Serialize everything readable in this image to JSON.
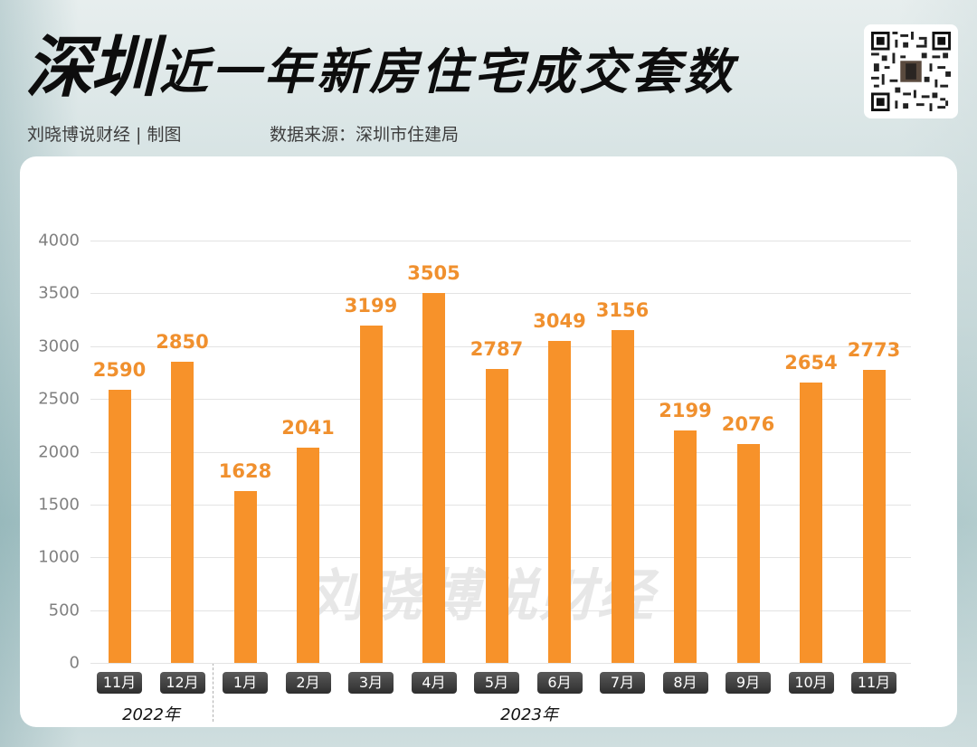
{
  "header": {
    "title_big": "深圳",
    "title_rest": "近一年新房住宅成交套数",
    "author": "刘晓博说财经 | 制图",
    "source": "数据来源：深圳市住建局",
    "qr_label": "qr-code"
  },
  "watermark": "刘晓博说财经",
  "colors": {
    "bar": "#f7922a",
    "value_label": "#f0902e",
    "month_badge": "#3a3a3a"
  },
  "chart_data": {
    "type": "bar",
    "title": "深圳近一年新房住宅成交套数",
    "xlabel": "",
    "ylabel": "",
    "ylim": [
      0,
      4000
    ],
    "yticks": [
      0,
      500,
      1000,
      1500,
      2000,
      2500,
      3000,
      3500,
      4000
    ],
    "grid": true,
    "legend": null,
    "categories": [
      "11月",
      "12月",
      "1月",
      "2月",
      "3月",
      "4月",
      "5月",
      "6月",
      "7月",
      "8月",
      "9月",
      "10月",
      "11月"
    ],
    "groups": [
      {
        "label": "2022年",
        "categories": [
          "11月",
          "12月"
        ]
      },
      {
        "label": "2023年",
        "categories": [
          "1月",
          "2月",
          "3月",
          "4月",
          "5月",
          "6月",
          "7月",
          "8月",
          "9月",
          "10月",
          "11月"
        ]
      }
    ],
    "values": [
      2590,
      2850,
      1628,
      2041,
      3199,
      3505,
      2787,
      3049,
      3156,
      2199,
      2076,
      2654,
      2773
    ]
  }
}
